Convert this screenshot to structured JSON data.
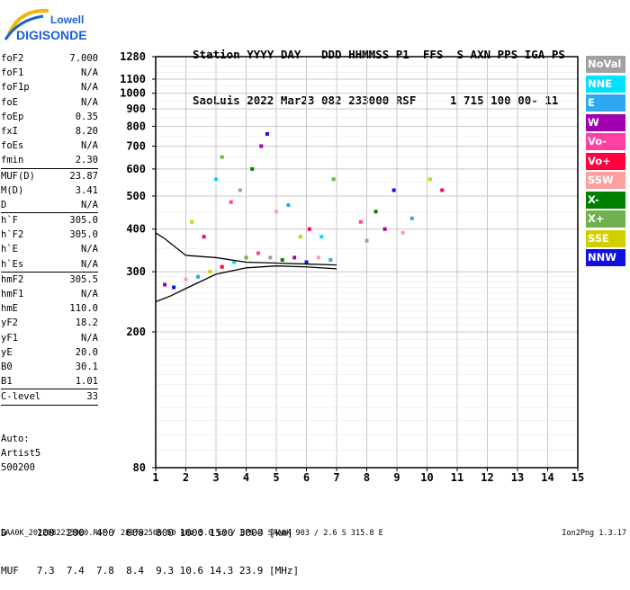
{
  "logo": {
    "line1": "Lowell",
    "line2": "DIGISONDE",
    "colors": {
      "blue": "#1a5fd6",
      "gold": "#f0b800"
    }
  },
  "header": {
    "labels": "Station YYYY DAY   DDD HHMMSS P1  FFS  S AXN PPS IGA PS",
    "values": "SaoLuis 2022 Mar23 082 233000 RSF     1 715 100 00- 11"
  },
  "params_groups": [
    [
      {
        "name": "foF2",
        "value": "7.000"
      },
      {
        "name": "foF1",
        "value": "N/A"
      },
      {
        "name": "foF1p",
        "value": "N/A"
      },
      {
        "name": "foE",
        "value": "N/A"
      },
      {
        "name": "foEp",
        "value": "0.35"
      },
      {
        "name": "fxI",
        "value": "8.20"
      },
      {
        "name": "foEs",
        "value": "N/A"
      },
      {
        "name": "fmin",
        "value": "2.30"
      }
    ],
    [
      {
        "name": "MUF(D)",
        "value": "23.87"
      },
      {
        "name": "M(D)",
        "value": "3.41"
      },
      {
        "name": "D",
        "value": "N/A"
      }
    ],
    [
      {
        "name": "h`F",
        "value": "305.0"
      },
      {
        "name": "h`F2",
        "value": "305.0"
      },
      {
        "name": "h`E",
        "value": "N/A"
      },
      {
        "name": "h`Es",
        "value": "N/A"
      }
    ],
    [
      {
        "name": "hmF2",
        "value": "305.5"
      },
      {
        "name": "hmF1",
        "value": "N/A"
      },
      {
        "name": "hmE",
        "value": "110.0"
      },
      {
        "name": "yF2",
        "value": "18.2"
      },
      {
        "name": "yF1",
        "value": "N/A"
      },
      {
        "name": "yE",
        "value": "20.0"
      },
      {
        "name": "B0",
        "value": "30.1"
      },
      {
        "name": "B1",
        "value": "1.01"
      }
    ],
    [
      {
        "name": "C-level",
        "value": "33"
      }
    ]
  ],
  "auto_block": {
    "line1": "Auto:",
    "line2": "Artist5",
    "line3": "500200"
  },
  "legend": [
    {
      "label": "NoVal",
      "color": "#a0a0a0"
    },
    {
      "label": "NNE",
      "color": "#00e0ff"
    },
    {
      "label": "E",
      "color": "#30a8f0"
    },
    {
      "label": "W",
      "color": "#a000b0"
    },
    {
      "label": "Vo-",
      "color": "#ff40a0"
    },
    {
      "label": "Vo+",
      "color": "#ff0040"
    },
    {
      "label": "SSW",
      "color": "#ffa0a0"
    },
    {
      "label": "X-",
      "color": "#008000"
    },
    {
      "label": "X+",
      "color": "#70b050"
    },
    {
      "label": "SSE",
      "color": "#d0d000"
    },
    {
      "label": "NNW",
      "color": "#1010e0"
    }
  ],
  "muf_table": {
    "d_label": "D",
    "d_values": [
      "100",
      "200",
      "400",
      "600",
      "800",
      "1000",
      "1500",
      "3000"
    ],
    "d_unit": "[km]",
    "m_label": "MUF",
    "m_values": [
      "7.3",
      "7.4",
      "7.8",
      "8.4",
      "9.3",
      "10.6",
      "14.3",
      "23.9"
    ],
    "m_unit": "[MHz]"
  },
  "footer": {
    "info": "SAA0K_2022082233000.RSF / 280fx256h 50 kHz 5.0 km / DPS-4 SAA0K 903 / 2.6 S 315.8 E",
    "version": "Ion2Png 1.3.17"
  },
  "chart_data": {
    "type": "scatter",
    "x_ticks": [
      1,
      2,
      3,
      4,
      5,
      6,
      7,
      8,
      9,
      10,
      11,
      12,
      13,
      14,
      15
    ],
    "y_ticks": [
      80,
      200,
      300,
      400,
      500,
      600,
      700,
      800,
      900,
      1000,
      1100,
      1280
    ],
    "xlim": [
      1,
      15
    ],
    "ylim": [
      80,
      1280
    ],
    "y_scale": "log",
    "grid": true,
    "series": [
      {
        "values": [
          {
            "x": 1.3,
            "y": 275
          },
          {
            "x": 1.6,
            "y": 270
          },
          {
            "x": 2.0,
            "y": 285
          },
          {
            "x": 2.4,
            "y": 290
          },
          {
            "x": 2.8,
            "y": 300
          },
          {
            "x": 3.2,
            "y": 310
          },
          {
            "x": 3.6,
            "y": 320
          },
          {
            "x": 4.0,
            "y": 330
          },
          {
            "x": 4.4,
            "y": 340
          },
          {
            "x": 4.8,
            "y": 330
          },
          {
            "x": 5.2,
            "y": 325
          },
          {
            "x": 5.6,
            "y": 330
          },
          {
            "x": 6.0,
            "y": 320
          },
          {
            "x": 6.4,
            "y": 330
          },
          {
            "x": 6.8,
            "y": 325
          },
          {
            "x": 2.2,
            "y": 420
          },
          {
            "x": 2.6,
            "y": 380
          },
          {
            "x": 3.0,
            "y": 560
          },
          {
            "x": 3.2,
            "y": 650
          },
          {
            "x": 3.5,
            "y": 480
          },
          {
            "x": 3.8,
            "y": 520
          },
          {
            "x": 4.2,
            "y": 600
          },
          {
            "x": 4.5,
            "y": 700
          },
          {
            "x": 4.7,
            "y": 760
          },
          {
            "x": 5.0,
            "y": 450
          },
          {
            "x": 5.4,
            "y": 470
          },
          {
            "x": 5.8,
            "y": 380
          },
          {
            "x": 6.1,
            "y": 400
          },
          {
            "x": 6.5,
            "y": 380
          },
          {
            "x": 6.9,
            "y": 560
          },
          {
            "x": 7.8,
            "y": 420
          },
          {
            "x": 8.0,
            "y": 370
          },
          {
            "x": 8.3,
            "y": 450
          },
          {
            "x": 8.6,
            "y": 400
          },
          {
            "x": 8.9,
            "y": 520
          },
          {
            "x": 9.2,
            "y": 390
          },
          {
            "x": 9.5,
            "y": 430
          },
          {
            "x": 10.1,
            "y": 560
          },
          {
            "x": 10.5,
            "y": 520
          }
        ]
      }
    ],
    "trace": [
      {
        "x": 1.0,
        "y": 245
      },
      {
        "x": 1.5,
        "y": 255
      },
      {
        "x": 2.0,
        "y": 268
      },
      {
        "x": 3.0,
        "y": 295
      },
      {
        "x": 4.0,
        "y": 308
      },
      {
        "x": 5.0,
        "y": 312
      },
      {
        "x": 6.0,
        "y": 310
      },
      {
        "x": 7.0,
        "y": 306
      }
    ],
    "trace_upper": [
      {
        "x": 1.0,
        "y": 390
      },
      {
        "x": 1.3,
        "y": 375
      },
      {
        "x": 2.0,
        "y": 335
      },
      {
        "x": 3.0,
        "y": 330
      },
      {
        "x": 4.0,
        "y": 320
      },
      {
        "x": 5.0,
        "y": 318
      },
      {
        "x": 6.0,
        "y": 316
      },
      {
        "x": 7.0,
        "y": 314
      }
    ]
  }
}
